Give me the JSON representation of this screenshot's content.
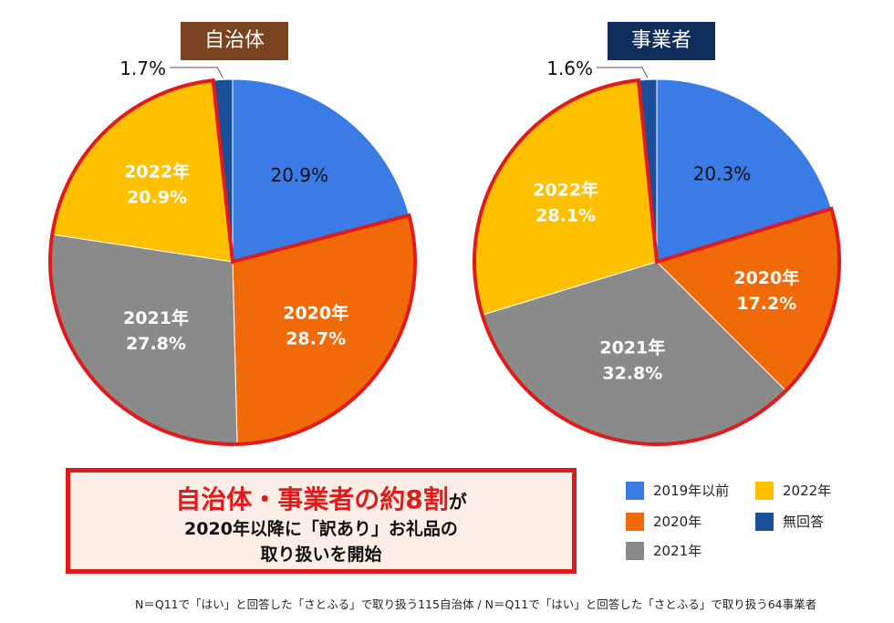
{
  "chart_data": [
    {
      "type": "pie",
      "title": "自治体",
      "title_color": "#7b4421",
      "start": "top, clockwise",
      "slices": [
        {
          "key": "2019",
          "label": "2019年以前",
          "value": 20.9,
          "text": "20.9%",
          "color": "#3a7be5",
          "label_color": "#111111",
          "bold": false,
          "show_year": false
        },
        {
          "key": "2020",
          "label": "2020年",
          "value": 28.7,
          "text": "28.7%",
          "color": "#f06a0a",
          "label_color": "#ffffff",
          "bold": true,
          "show_year": true,
          "highlight": true
        },
        {
          "key": "2021",
          "label": "2021年",
          "value": 27.8,
          "text": "27.8%",
          "color": "#8a8a8a",
          "label_color": "#ffffff",
          "bold": true,
          "show_year": true,
          "highlight": true
        },
        {
          "key": "2022",
          "label": "2022年",
          "value": 20.9,
          "text": "20.9%",
          "color": "#ffc000",
          "label_color": "#ffffff",
          "bold": true,
          "show_year": true,
          "highlight": true
        },
        {
          "key": "none",
          "label": "無回答",
          "value": 1.7,
          "text": "1.7%",
          "color": "#1a4f97",
          "label_color": "#111111",
          "bold": false,
          "show_year": false,
          "outside": true
        }
      ]
    },
    {
      "type": "pie",
      "title": "事業者",
      "title_color": "#0f2e5b",
      "start": "top, clockwise",
      "slices": [
        {
          "key": "2019",
          "label": "2019年以前",
          "value": 20.3,
          "text": "20.3%",
          "color": "#3a7be5",
          "label_color": "#111111",
          "bold": false,
          "show_year": false
        },
        {
          "key": "2020",
          "label": "2020年",
          "value": 17.2,
          "text": "17.2%",
          "color": "#f06a0a",
          "label_color": "#ffffff",
          "bold": true,
          "show_year": true,
          "highlight": true
        },
        {
          "key": "2021",
          "label": "2021年",
          "value": 32.8,
          "text": "32.8%",
          "color": "#8a8a8a",
          "label_color": "#ffffff",
          "bold": true,
          "show_year": true,
          "highlight": true
        },
        {
          "key": "2022",
          "label": "2022年",
          "value": 28.1,
          "text": "28.1%",
          "color": "#ffc000",
          "label_color": "#ffffff",
          "bold": true,
          "show_year": true,
          "highlight": true
        },
        {
          "key": "none",
          "label": "無回答",
          "value": 1.6,
          "text": "1.6%",
          "color": "#1a4f97",
          "label_color": "#111111",
          "bold": false,
          "show_year": false,
          "outside": true
        }
      ]
    }
  ],
  "highlight_color": "#e11b1b",
  "callout": {
    "line1_red": "自治体・事業者の約8割",
    "line1_tail": "が",
    "line2": "2020年以降に「訳あり」お礼品の",
    "line3": "取り扱いを開始"
  },
  "legend": [
    {
      "label": "2019年以前",
      "color": "#3a7be5"
    },
    {
      "label": "2022年",
      "color": "#ffc000"
    },
    {
      "label": "2020年",
      "color": "#f06a0a"
    },
    {
      "label": "無回答",
      "color": "#1a4f97"
    },
    {
      "label": "2021年",
      "color": "#8a8a8a"
    }
  ],
  "footnote": "N＝Q11で「はい」と回答した「さとふる」で取り扱う115自治体 / N＝Q11で「はい」と回答した「さとふる」で取り扱う64事業者"
}
